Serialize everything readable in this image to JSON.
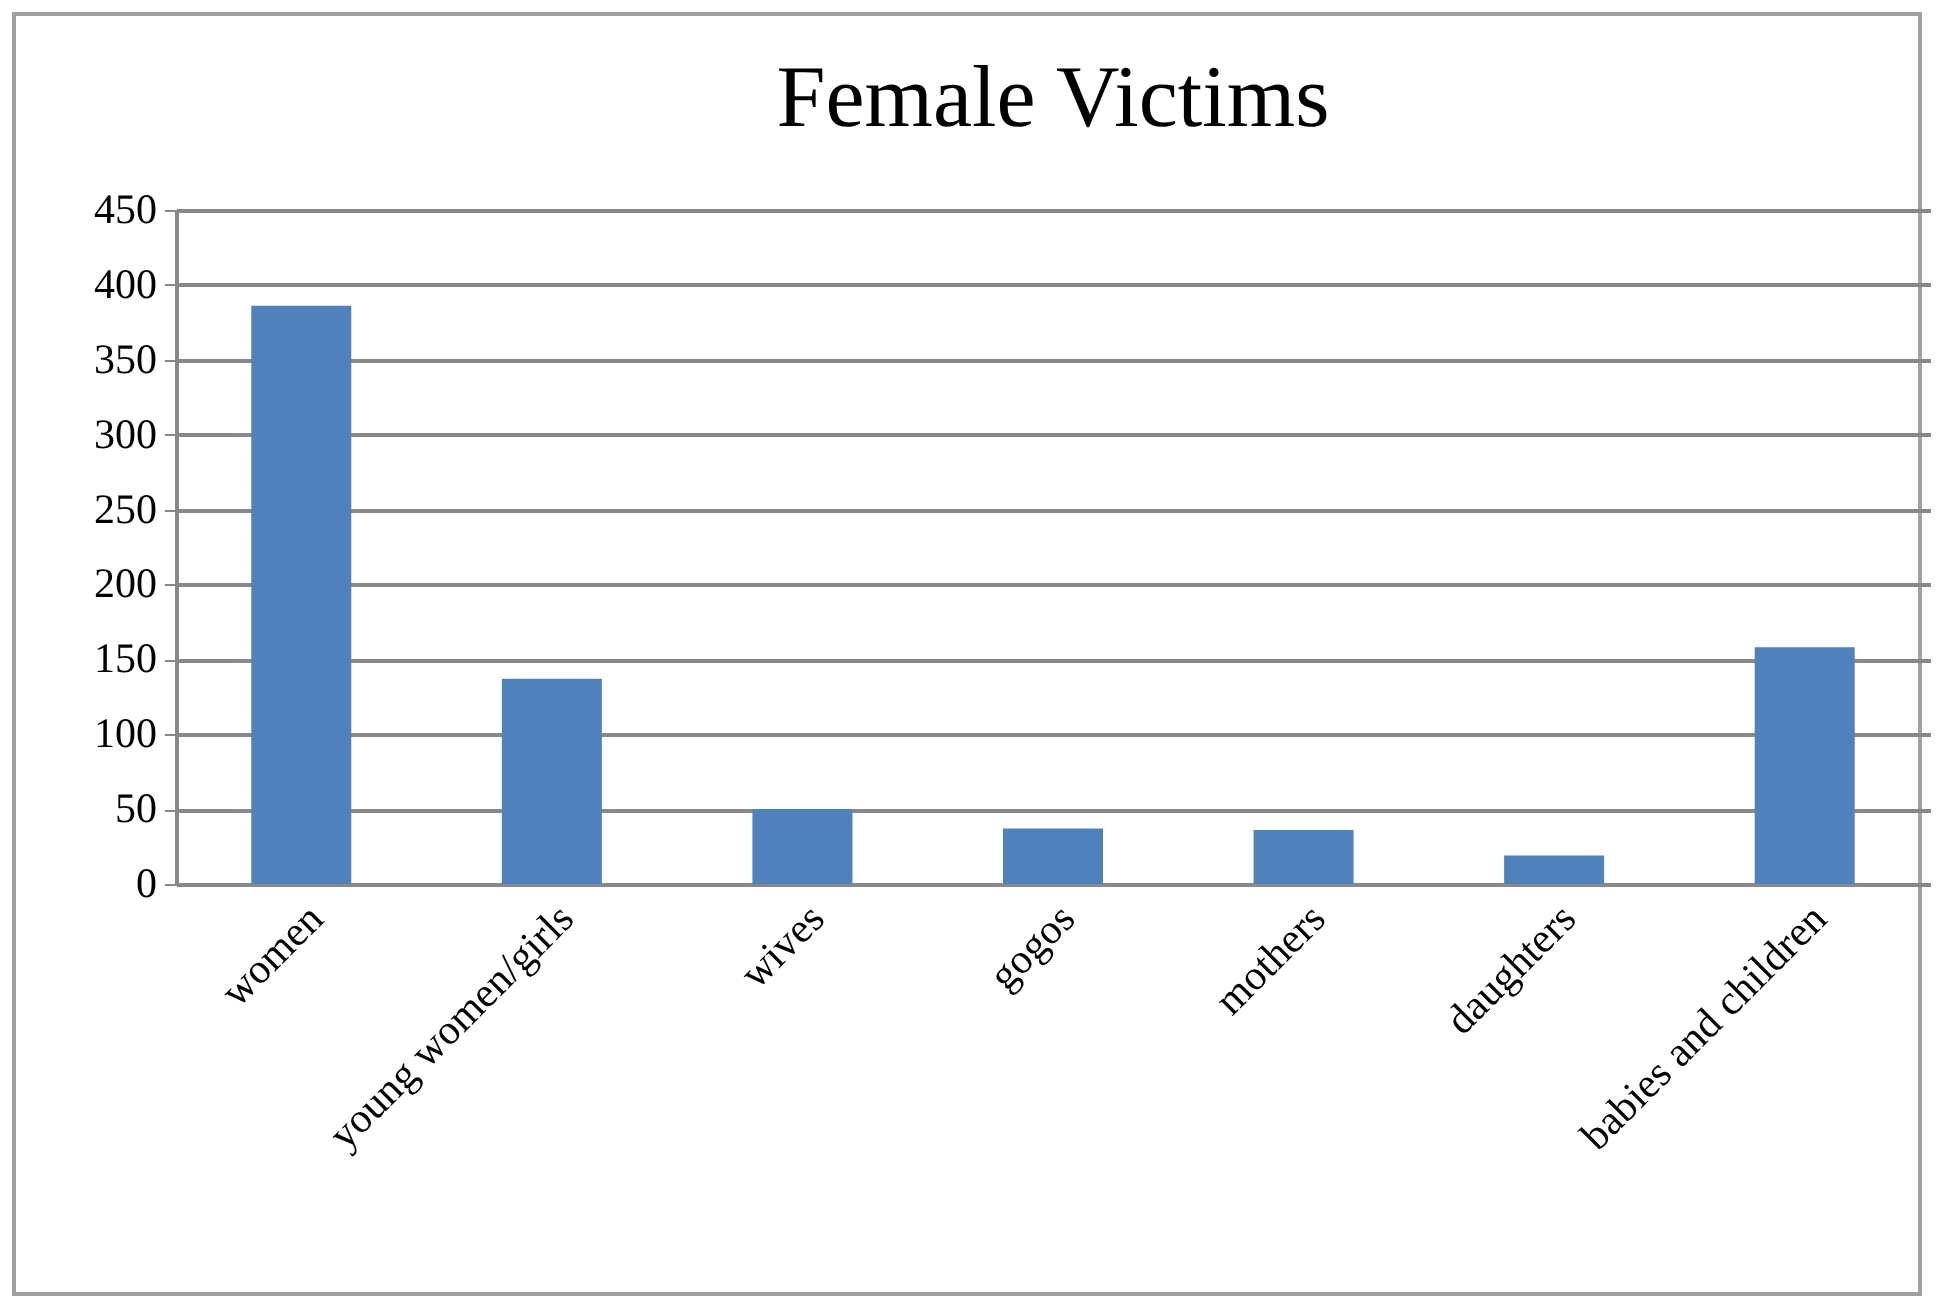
{
  "chart_data": {
    "type": "bar",
    "title": "Female Victims",
    "categories": [
      "women",
      "young women/girls",
      "wives",
      "gogos",
      "mothers",
      "daughters",
      "babies and children"
    ],
    "values": [
      386,
      137,
      50,
      37,
      36,
      19,
      158
    ],
    "color": "#4f81bd",
    "ylim": [
      0,
      450
    ],
    "yticks": [
      0,
      50,
      100,
      150,
      200,
      250,
      300,
      350,
      400,
      450
    ],
    "grid": "y"
  }
}
